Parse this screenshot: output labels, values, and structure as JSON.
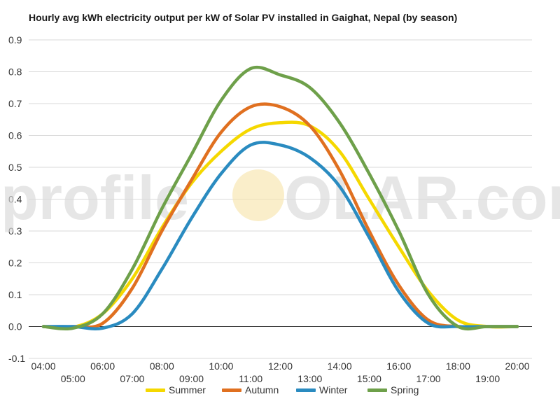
{
  "chart_data": {
    "type": "line",
    "title": "Hourly avg kWh electricity output per kW of Solar PV installed in Gaighat, Nepal (by season)",
    "watermark": "profileSOLAR.com",
    "xlabel": "",
    "ylabel": "",
    "ylim": [
      -0.1,
      0.9
    ],
    "y_ticks": [
      "-0.1",
      "0.0",
      "0.1",
      "0.2",
      "0.3",
      "0.4",
      "0.5",
      "0.6",
      "0.7",
      "0.8",
      "0.9"
    ],
    "grid": true,
    "legend_position": "bottom",
    "x": [
      "04:00",
      "05:00",
      "06:00",
      "07:00",
      "08:00",
      "09:00",
      "10:00",
      "11:00",
      "12:00",
      "13:00",
      "14:00",
      "15:00",
      "16:00",
      "17:00",
      "18:00",
      "19:00",
      "20:00"
    ],
    "series": [
      {
        "name": "Summer",
        "color": "#f5d800",
        "values": [
          0.0,
          -0.002,
          0.04,
          0.15,
          0.31,
          0.45,
          0.55,
          0.62,
          0.64,
          0.63,
          0.55,
          0.4,
          0.25,
          0.11,
          0.02,
          0.0,
          0.0
        ]
      },
      {
        "name": "Autumn",
        "color": "#e07020",
        "values": [
          0.0,
          0.0,
          0.01,
          0.12,
          0.3,
          0.46,
          0.61,
          0.69,
          0.69,
          0.63,
          0.49,
          0.3,
          0.13,
          0.02,
          0.0,
          0.0,
          0.0
        ]
      },
      {
        "name": "Winter",
        "color": "#2a8bc0",
        "values": [
          0.0,
          0.0,
          -0.005,
          0.04,
          0.18,
          0.34,
          0.48,
          0.57,
          0.57,
          0.53,
          0.44,
          0.28,
          0.11,
          0.01,
          0.0,
          0.0,
          0.0
        ]
      },
      {
        "name": "Spring",
        "color": "#6ea04a",
        "values": [
          0.0,
          -0.005,
          0.04,
          0.18,
          0.37,
          0.54,
          0.71,
          0.81,
          0.79,
          0.75,
          0.64,
          0.48,
          0.3,
          0.1,
          0.0,
          0.0,
          0.0
        ]
      }
    ]
  }
}
